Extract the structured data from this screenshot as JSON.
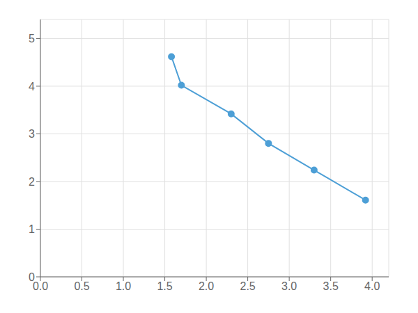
{
  "chart_data": {
    "type": "line",
    "x": [
      1.58,
      1.7,
      2.3,
      2.75,
      3.3,
      3.92
    ],
    "values": [
      4.62,
      4.02,
      3.42,
      2.8,
      2.24,
      1.61
    ],
    "color": "#4d9fd6",
    "marker": "circle",
    "xlim": [
      0.0,
      4.2
    ],
    "ylim": [
      0,
      5.4
    ],
    "xticks": [
      {
        "value": 0.0,
        "label": "0.0"
      },
      0.5,
      {
        "value": 1.0,
        "label": "1.0"
      },
      1.5,
      {
        "value": 2.0,
        "label": "2.0"
      },
      2.5,
      {
        "value": 3.0,
        "label": "3.0"
      },
      3.5,
      {
        "value": 4.0,
        "label": "4.0"
      }
    ],
    "yticks": [
      0,
      1,
      2,
      3,
      4,
      5
    ],
    "grid": true
  }
}
